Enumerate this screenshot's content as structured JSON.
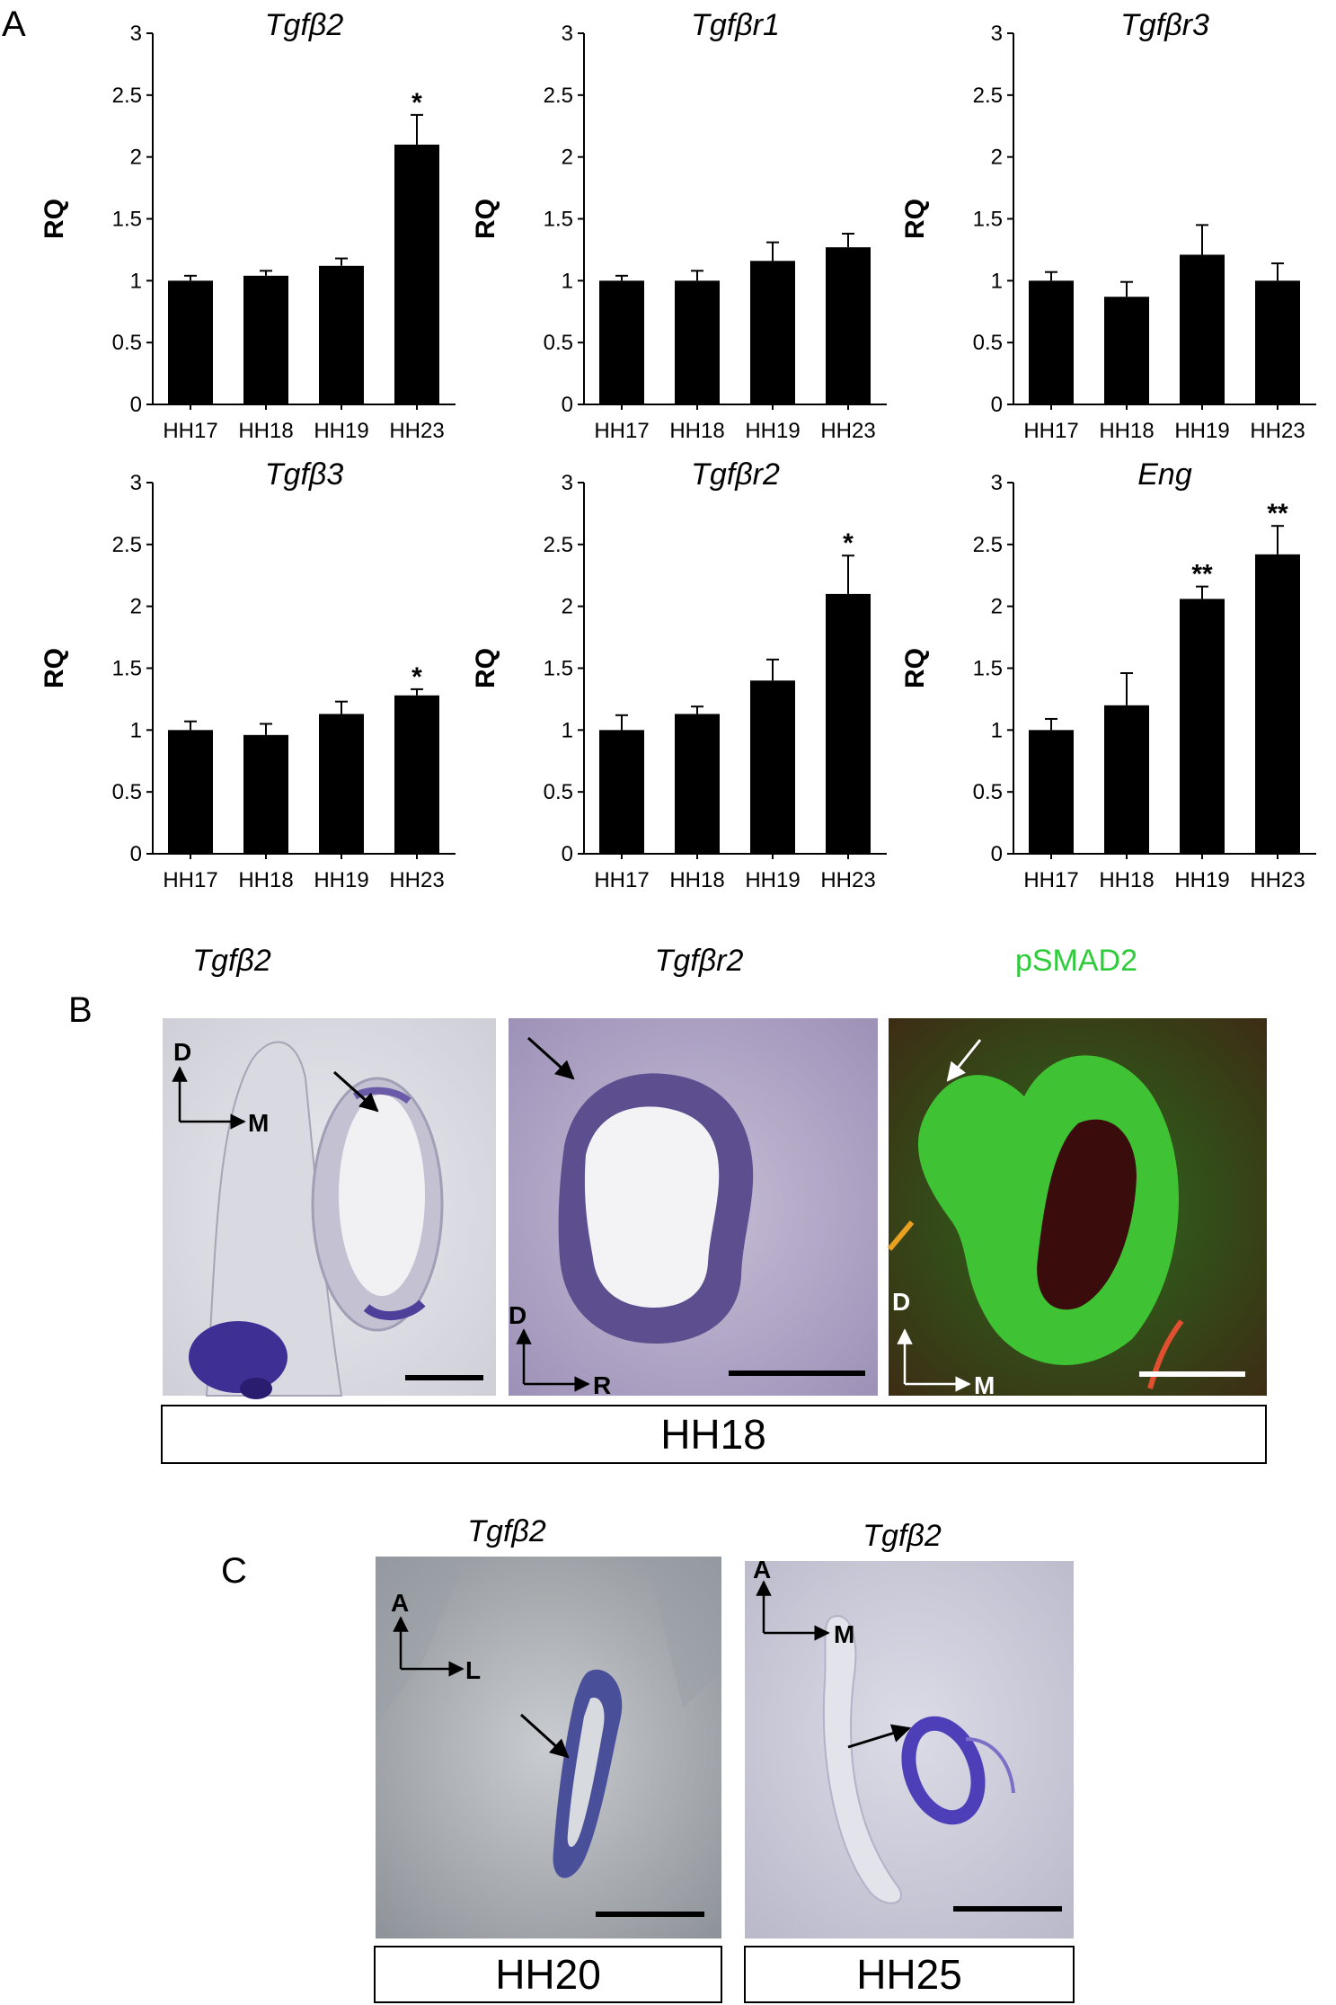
{
  "panels": {
    "a": "A",
    "b": "B",
    "c": "C"
  },
  "chart_data": [
    {
      "type": "bar",
      "title": "Tgfβ2",
      "ylabel": "RQ",
      "ylim": [
        0,
        3
      ],
      "yticks": [
        "0",
        "0.5",
        "1",
        "1.5",
        "2",
        "2.5",
        "3"
      ],
      "categories": [
        "HH17",
        "HH18",
        "HH19",
        "HH23"
      ],
      "values": [
        1.0,
        1.04,
        1.12,
        2.1
      ],
      "errors": [
        0.04,
        0.04,
        0.06,
        0.24
      ],
      "significance": [
        "",
        "",
        "",
        "*"
      ]
    },
    {
      "type": "bar",
      "title": "Tgfβr1",
      "ylabel": "RQ",
      "ylim": [
        0,
        3
      ],
      "yticks": [
        "0",
        "0.5",
        "1",
        "1.5",
        "2",
        "2.5",
        "3"
      ],
      "categories": [
        "HH17",
        "HH18",
        "HH19",
        "HH23"
      ],
      "values": [
        1.0,
        1.0,
        1.16,
        1.27
      ],
      "errors": [
        0.04,
        0.08,
        0.15,
        0.11
      ],
      "significance": [
        "",
        "",
        "",
        ""
      ]
    },
    {
      "type": "bar",
      "title": "Tgfβr3",
      "ylabel": "RQ",
      "ylim": [
        0,
        3
      ],
      "yticks": [
        "0",
        "0.5",
        "1",
        "1.5",
        "2",
        "2.5",
        "3"
      ],
      "categories": [
        "HH17",
        "HH18",
        "HH19",
        "HH23"
      ],
      "values": [
        1.0,
        0.87,
        1.21,
        1.0
      ],
      "errors": [
        0.07,
        0.12,
        0.24,
        0.14
      ],
      "significance": [
        "",
        "",
        "",
        ""
      ]
    },
    {
      "type": "bar",
      "title": "Tgfβ3",
      "ylabel": "RQ",
      "ylim": [
        0,
        3
      ],
      "yticks": [
        "0",
        "0.5",
        "1",
        "1.5",
        "2",
        "2.5",
        "3"
      ],
      "categories": [
        "HH17",
        "HH18",
        "HH19",
        "HH23"
      ],
      "values": [
        1.0,
        0.96,
        1.13,
        1.28
      ],
      "errors": [
        0.07,
        0.09,
        0.1,
        0.05
      ],
      "significance": [
        "",
        "",
        "",
        "*"
      ]
    },
    {
      "type": "bar",
      "title": "Tgfβr2",
      "ylabel": "RQ",
      "ylim": [
        0,
        3
      ],
      "yticks": [
        "0",
        "0.5",
        "1",
        "1.5",
        "2",
        "2.5",
        "3"
      ],
      "categories": [
        "HH17",
        "HH18",
        "HH19",
        "HH23"
      ],
      "values": [
        1.0,
        1.13,
        1.4,
        2.1
      ],
      "errors": [
        0.12,
        0.06,
        0.17,
        0.31
      ],
      "significance": [
        "",
        "",
        "",
        "*"
      ]
    },
    {
      "type": "bar",
      "title": "Eng",
      "ylabel": "RQ",
      "ylim": [
        0,
        3
      ],
      "yticks": [
        "0",
        "0.5",
        "1",
        "1.5",
        "2",
        "2.5",
        "3"
      ],
      "categories": [
        "HH17",
        "HH18",
        "HH19",
        "HH23"
      ],
      "values": [
        1.0,
        1.2,
        2.06,
        2.42
      ],
      "errors": [
        0.09,
        0.26,
        0.1,
        0.23
      ],
      "significance": [
        "",
        "",
        "**",
        "**"
      ]
    }
  ],
  "panel_b": {
    "images": [
      {
        "title": "Tgfβ2",
        "axis_v": "D",
        "axis_h": "M"
      },
      {
        "title": "Tgfβr2",
        "axis_v": "D",
        "axis_h": "R"
      },
      {
        "title": "pSMAD2",
        "axis_v": "D",
        "axis_h": "M",
        "title_color": "#2ecc3a"
      }
    ],
    "stage": "HH18"
  },
  "panel_c": {
    "images": [
      {
        "title": "Tgfβ2",
        "axis_v": "A",
        "axis_h": "L",
        "stage": "HH20"
      },
      {
        "title": "Tgfβ2",
        "axis_v": "A",
        "axis_h": "M",
        "stage": "HH25"
      }
    ]
  }
}
